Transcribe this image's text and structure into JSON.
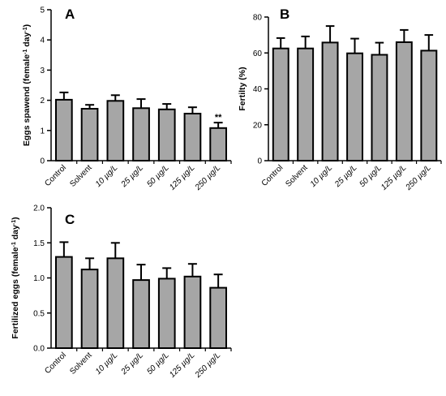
{
  "chart_data": [
    {
      "panel": "A",
      "type": "bar",
      "categories": [
        "Control",
        "Solvent",
        "10 µg/L",
        "25 µg/L",
        "50 µg/L",
        "125 µg/L",
        "250 µg/L"
      ],
      "values": [
        2.02,
        1.72,
        1.98,
        1.74,
        1.7,
        1.56,
        1.08
      ],
      "errors": [
        0.24,
        0.13,
        0.19,
        0.3,
        0.18,
        0.21,
        0.18
      ],
      "annotations": [
        "",
        "",
        "",
        "",
        "",
        "",
        "**"
      ],
      "ylabel": "Eggs spawend (female⁻¹ day⁻¹)",
      "ylim": [
        0,
        5
      ],
      "yticks": [
        "0",
        "1",
        "2",
        "3",
        "4",
        "5"
      ],
      "bar_color": "#a6a6a6"
    },
    {
      "panel": "B",
      "type": "bar",
      "categories": [
        "Control",
        "Solvent",
        "10 µg/L",
        "25 µg/L",
        "50 µg/L",
        "125 µg/L",
        "250 µg/L"
      ],
      "values": [
        62.5,
        62.5,
        65.8,
        59.8,
        59.0,
        66.0,
        61.3
      ],
      "errors": [
        5.8,
        6.7,
        9.2,
        8.2,
        6.7,
        6.8,
        8.7
      ],
      "annotations": [
        "",
        "",
        "",
        "",
        "",
        "",
        ""
      ],
      "ylabel": "Fertilty (%)",
      "ylim": [
        0,
        80
      ],
      "yticks": [
        "0",
        "20",
        "40",
        "60",
        "80"
      ],
      "bar_color": "#a6a6a6"
    },
    {
      "panel": "C",
      "type": "bar",
      "categories": [
        "Control",
        "Solvent",
        "10 µg/L",
        "25 µg/L",
        "50 µg/L",
        "125 µg/L",
        "250 µg/L"
      ],
      "values": [
        1.3,
        1.12,
        1.28,
        0.97,
        0.99,
        1.02,
        0.86
      ],
      "errors": [
        0.21,
        0.16,
        0.22,
        0.22,
        0.15,
        0.18,
        0.19
      ],
      "annotations": [
        "",
        "",
        "",
        "",
        "",
        "",
        ""
      ],
      "ylabel": "Fertilized eggs (female⁻¹ day⁻¹)",
      "ylim": [
        0,
        2
      ],
      "yticks": [
        "0.0",
        "0.5",
        "1.0",
        "1.5",
        "2.0"
      ],
      "bar_color": "#a6a6a6"
    }
  ]
}
